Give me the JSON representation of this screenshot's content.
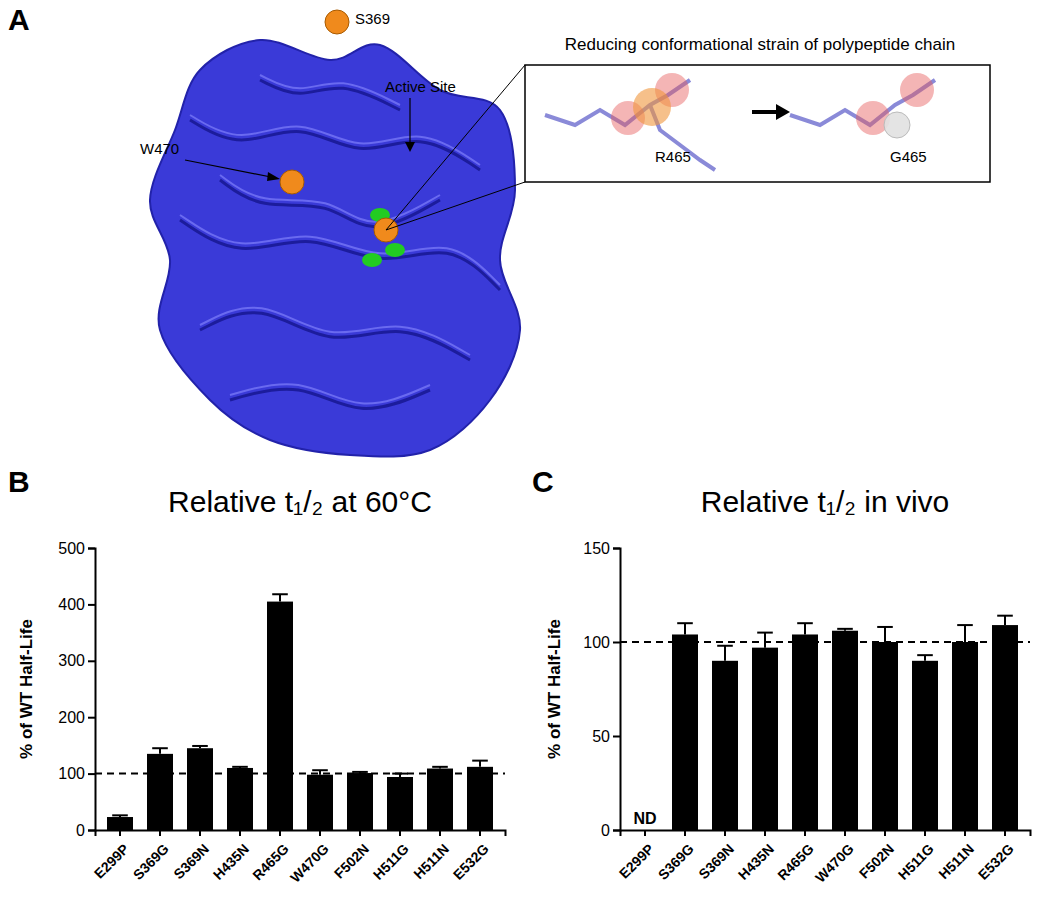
{
  "panel_labels": [
    "A",
    "B",
    "C"
  ],
  "structure": {
    "title": "Reducing conformational strain of polypeptide chain",
    "labels": [
      "S369",
      "Active Site",
      "W470"
    ],
    "inset_labels": [
      "R465",
      "G465"
    ]
  },
  "chart_data": [
    {
      "type": "bar",
      "title": "Relative t₁/₂ at 60°C",
      "y_label": "% of WT Half-Life",
      "categories": [
        "E299P",
        "S369G",
        "S369N",
        "H435N",
        "R465G",
        "W470G",
        "F502N",
        "H511G",
        "H511N",
        "E532G"
      ],
      "values": [
        23,
        135,
        145,
        110,
        405,
        98,
        101,
        94,
        109,
        112
      ],
      "errors": [
        3,
        10,
        4,
        2,
        13,
        8,
        2,
        6,
        3,
        11
      ],
      "reference_line": 100,
      "color": "#000000",
      "ylim": [
        0,
        500
      ],
      "yticks": [
        0,
        100,
        200,
        300,
        400,
        500
      ],
      "grid": false
    },
    {
      "type": "bar",
      "title": "Relative t₁/₂ in vivo",
      "y_label": "% of WT Half-Life",
      "categories": [
        "E299P",
        "S369G",
        "S369N",
        "H435N",
        "R465G",
        "W470G",
        "F502N",
        "H511G",
        "H511N",
        "E532G"
      ],
      "values": [
        null,
        104,
        90,
        97,
        104,
        106,
        100,
        90,
        100,
        109
      ],
      "errors": [
        null,
        6,
        8,
        8,
        6,
        1,
        8,
        3,
        9,
        5
      ],
      "annotations": [
        {
          "x": "E299P",
          "text": "ND"
        }
      ],
      "reference_line": 100,
      "color": "#000000",
      "ylim": [
        0,
        150
      ],
      "yticks": [
        0,
        50,
        100,
        150
      ],
      "grid": false
    }
  ]
}
